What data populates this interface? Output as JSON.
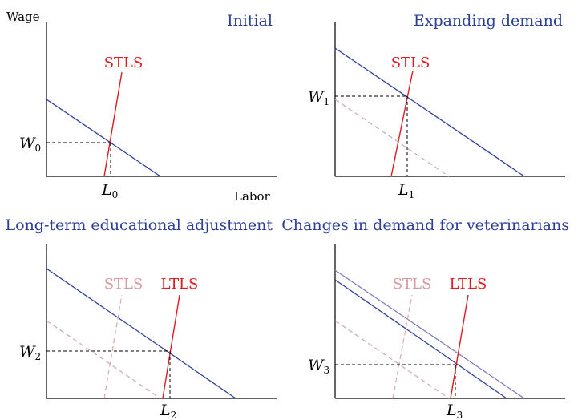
{
  "axes": {
    "y_label": "Wage",
    "x_label": "Labor"
  },
  "panels": [
    {
      "title": "Initial",
      "curves": {
        "supply_label": "STLS"
      },
      "equilibrium": {
        "wage_base": "W",
        "wage_sub": "0",
        "labor_base": "L",
        "labor_sub": "0"
      }
    },
    {
      "title": "Expanding demand",
      "curves": {
        "supply_label": "STLS"
      },
      "equilibrium": {
        "wage_base": "W",
        "wage_sub": "1",
        "labor_base": "L",
        "labor_sub": "1"
      }
    },
    {
      "title": "Long-term educational adjustment",
      "curves": {
        "old_supply_label": "STLS",
        "supply_label": "LTLS"
      },
      "equilibrium": {
        "wage_base": "W",
        "wage_sub": "2",
        "labor_base": "L",
        "labor_sub": "2"
      }
    },
    {
      "title": "Changes in demand for veterinarians",
      "curves": {
        "old_supply_label": "STLS",
        "supply_label": "LTLS"
      },
      "equilibrium": {
        "wage_base": "W",
        "wage_sub": "3",
        "labor_base": "L",
        "labor_sub": "3"
      }
    }
  ],
  "colors": {
    "demand": "#2f3f9a",
    "supply": "#e0191f",
    "faded_supply": "#e0a6aa",
    "title": "#2b3f98"
  }
}
